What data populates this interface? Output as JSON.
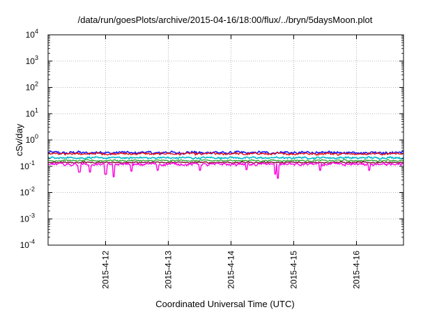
{
  "chart_data": {
    "type": "line",
    "title": "/data/run/goesPlots/archive/2015-04-16/18:00/flux/../bryn/5daysMoon.plot",
    "xlabel": "Coordinated Universal Time (UTC)",
    "ylabel": "cSv/day",
    "yscale": "log",
    "ylim": [
      0.0001,
      10000
    ],
    "yticks": [
      {
        "base": "10",
        "exp": "-4",
        "value": 0.0001
      },
      {
        "base": "10",
        "exp": "-3",
        "value": 0.001
      },
      {
        "base": "10",
        "exp": "-2",
        "value": 0.01
      },
      {
        "base": "10",
        "exp": "-1",
        "value": 0.1
      },
      {
        "base": "10",
        "exp": "0",
        "value": 1
      },
      {
        "base": "10",
        "exp": "1",
        "value": 10
      },
      {
        "base": "10",
        "exp": "2",
        "value": 100
      },
      {
        "base": "10",
        "exp": "3",
        "value": 1000
      },
      {
        "base": "10",
        "exp": "4",
        "value": 10000
      }
    ],
    "xlim": [
      "2015-04-11T02:00",
      "2015-04-16T18:00"
    ],
    "xticks": [
      {
        "label": "2015-4-12",
        "date": "2015-04-12"
      },
      {
        "label": "2015-4-13",
        "date": "2015-04-13"
      },
      {
        "label": "2015-4-14",
        "date": "2015-04-14"
      },
      {
        "label": "2015-4-15",
        "date": "2015-04-15"
      },
      {
        "label": "2015-4-16",
        "date": "2015-04-16"
      }
    ],
    "grid": true,
    "legend": "none",
    "series": [
      {
        "color": "#1a1aff",
        "level": 0.33,
        "noise": 0.12,
        "dips": [],
        "width": 1.6
      },
      {
        "color": "#e01010",
        "level": 0.3,
        "noise": 0.1,
        "dips": [],
        "width": 1.4
      },
      {
        "color": "#00b8c8",
        "level": 0.21,
        "noise": 0.08,
        "dips": [],
        "width": 1.6
      },
      {
        "color": "#1fa01f",
        "level": 0.165,
        "noise": 0.07,
        "dips": [],
        "width": 1.2
      },
      {
        "color": "#7a0f2a",
        "level": 0.14,
        "noise": 0.06,
        "dips": [],
        "width": 1.4
      },
      {
        "color": "#ff00e0",
        "level": 0.12,
        "noise": 0.12,
        "dips": [
          {
            "date": "2015-04-11T14:00",
            "value": 0.06
          },
          {
            "date": "2015-04-11T18:00",
            "value": 0.06
          },
          {
            "date": "2015-04-12T00:00",
            "value": 0.05
          },
          {
            "date": "2015-04-12T03:00",
            "value": 0.04
          },
          {
            "date": "2015-04-12T10:00",
            "value": 0.065
          },
          {
            "date": "2015-04-12T20:00",
            "value": 0.07
          },
          {
            "date": "2015-04-13T12:00",
            "value": 0.07
          },
          {
            "date": "2015-04-14T06:00",
            "value": 0.075
          },
          {
            "date": "2015-04-14T17:00",
            "value": 0.05
          },
          {
            "date": "2015-04-14T18:00",
            "value": 0.035
          },
          {
            "date": "2015-04-15T10:00",
            "value": 0.07
          },
          {
            "date": "2015-04-16T05:00",
            "value": 0.07
          }
        ],
        "width": 1.4
      }
    ]
  }
}
